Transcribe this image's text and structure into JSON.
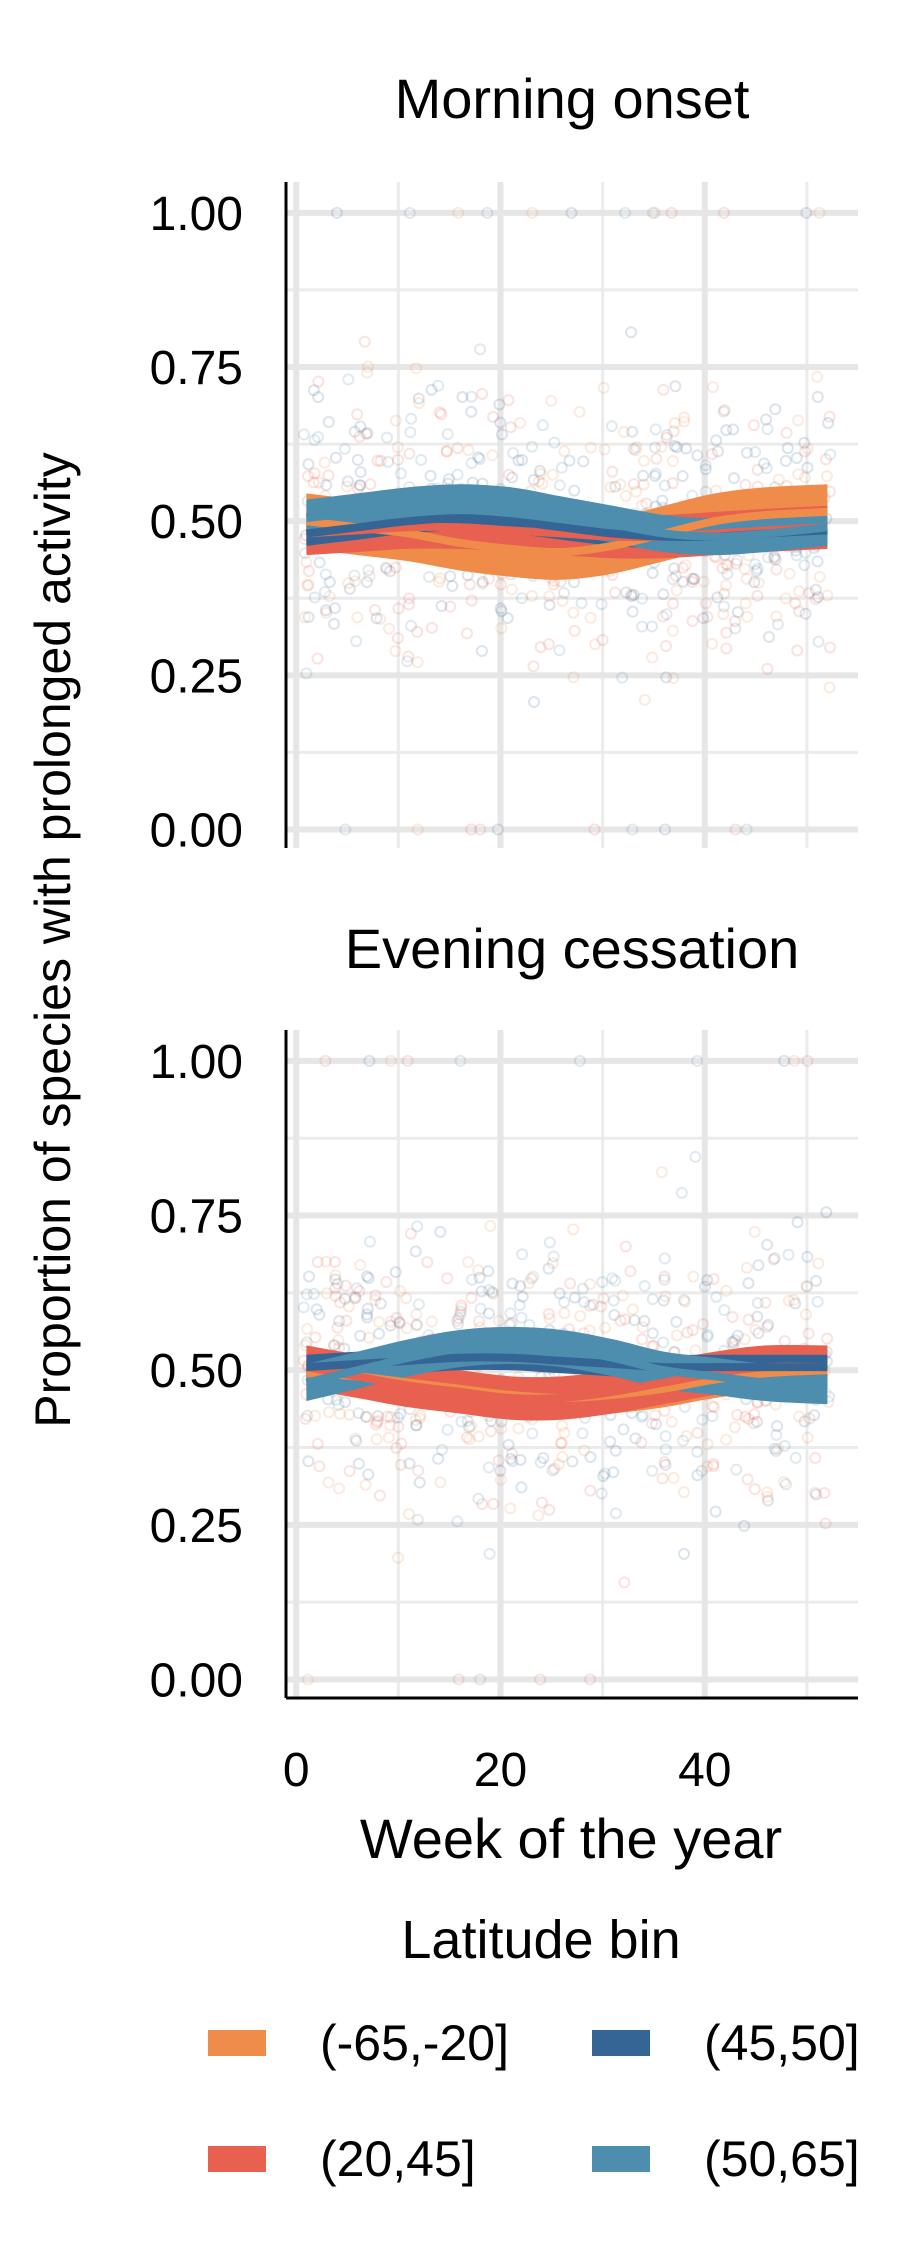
{
  "chart_data": {
    "type": "line",
    "ylabel": "Proportion of species with prolonged activity",
    "xlabel": "Week of the year",
    "xlim": [
      -1,
      55
    ],
    "ylim": [
      -0.03,
      1.05
    ],
    "x_ticks": [
      0,
      20,
      40
    ],
    "y_ticks": [
      0.0,
      0.25,
      0.5,
      0.75,
      1.0
    ],
    "y_tick_labels": [
      "0.00",
      "0.25",
      "0.50",
      "0.75",
      "1.00"
    ],
    "grid": true,
    "legend": {
      "title": "Latitude bin",
      "position": "bottom",
      "entries": [
        {
          "label": "(-65,-20]",
          "color": "#F08C4A"
        },
        {
          "label": "(20,45]",
          "color": "#E8604F"
        },
        {
          "label": "(45,50]",
          "color": "#356594"
        },
        {
          "label": "(50,65]",
          "color": "#4D8DAE"
        }
      ]
    },
    "panels": [
      {
        "title": "Morning onset",
        "x": [
          1,
          6,
          11,
          16,
          21,
          26,
          31,
          36,
          41,
          46,
          52
        ],
        "series": [
          {
            "name": "(-65,-20]",
            "color": "#F08C4A",
            "band": 0.045,
            "values": [
              0.5,
              0.49,
              0.48,
              0.465,
              0.455,
              0.45,
              0.46,
              0.48,
              0.5,
              0.51,
              0.515
            ]
          },
          {
            "name": "(20,45]",
            "color": "#E8604F",
            "band": 0.035,
            "values": [
              0.48,
              0.485,
              0.49,
              0.49,
              0.485,
              0.48,
              0.475,
              0.475,
              0.48,
              0.485,
              0.49
            ]
          },
          {
            "name": "(45,50]",
            "color": "#356594",
            "band": 0.02,
            "values": [
              0.48,
              0.49,
              0.5,
              0.505,
              0.5,
              0.49,
              0.48,
              0.475,
              0.475,
              0.48,
              0.485
            ]
          },
          {
            "name": "(50,65]",
            "color": "#4D8DAE",
            "band": 0.03,
            "values": [
              0.505,
              0.515,
              0.525,
              0.53,
              0.525,
              0.51,
              0.495,
              0.48,
              0.475,
              0.48,
              0.49
            ]
          }
        ]
      },
      {
        "title": "Evening cessation",
        "x": [
          1,
          6,
          11,
          16,
          21,
          26,
          31,
          36,
          41,
          46,
          52
        ],
        "series": [
          {
            "name": "(-65,-20]",
            "color": "#F08C4A",
            "band": 0.03,
            "values": [
              0.495,
              0.49,
              0.48,
              0.47,
              0.46,
              0.455,
              0.46,
              0.47,
              0.485,
              0.495,
              0.5
            ]
          },
          {
            "name": "(20,45]",
            "color": "#E8604F",
            "band": 0.035,
            "values": [
              0.505,
              0.49,
              0.475,
              0.465,
              0.455,
              0.455,
              0.465,
              0.48,
              0.495,
              0.505,
              0.505
            ]
          },
          {
            "name": "(45,50]",
            "color": "#356594",
            "band": 0.02,
            "values": [
              0.505,
              0.51,
              0.515,
              0.52,
              0.52,
              0.515,
              0.51,
              0.505,
              0.505,
              0.505,
              0.505
            ]
          },
          {
            "name": "(50,65]",
            "color": "#4D8DAE",
            "band": 0.03,
            "values": [
              0.48,
              0.5,
              0.52,
              0.535,
              0.54,
              0.535,
              0.52,
              0.5,
              0.49,
              0.48,
              0.475
            ]
          }
        ]
      }
    ]
  }
}
